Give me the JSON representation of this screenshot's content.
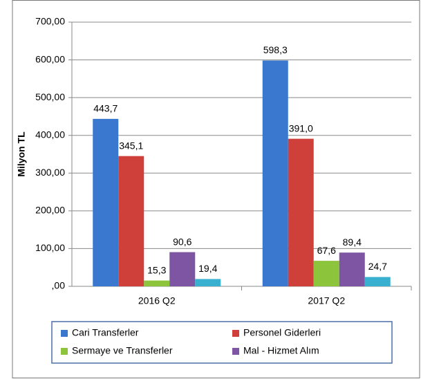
{
  "chart_data": {
    "type": "bar",
    "y_label": "Milyon TL",
    "categories": [
      "2016 Q2",
      "2017 Q2"
    ],
    "series": [
      {
        "name": "Cari Transferler",
        "color": "#3a78d0",
        "values": [
          443.7,
          598.3
        ],
        "value_labels": [
          "443,7",
          "598,3"
        ]
      },
      {
        "name": "Personel Giderleri",
        "color": "#d0403a",
        "values": [
          345.1,
          391.0
        ],
        "value_labels": [
          "345,1",
          "391,0"
        ]
      },
      {
        "name": "Sermaye ve Transferler",
        "color": "#8cc43c",
        "values": [
          15.3,
          67.6
        ],
        "value_labels": [
          "15,3",
          "67,6"
        ]
      },
      {
        "name": "Mal - Hizmet Alım",
        "color": "#7d55a3",
        "values": [
          90.6,
          89.4
        ],
        "value_labels": [
          "90,6",
          "89,4"
        ]
      },
      {
        "name": null,
        "color": "#3ab0d0",
        "values": [
          19.4,
          24.7
        ],
        "value_labels": [
          "19,4",
          "24,7"
        ]
      }
    ],
    "ylim": [
      0,
      700
    ],
    "yticks": [
      {
        "value": 0,
        "label": ",00"
      },
      {
        "value": 100,
        "label": "100,00"
      },
      {
        "value": 200,
        "label": "200,00"
      },
      {
        "value": 300,
        "label": "300,00"
      },
      {
        "value": 400,
        "label": "400,00"
      },
      {
        "value": 500,
        "label": "500,00"
      },
      {
        "value": 600,
        "label": "600,00"
      },
      {
        "value": 700,
        "label": "700,00"
      }
    ],
    "grid": true
  }
}
